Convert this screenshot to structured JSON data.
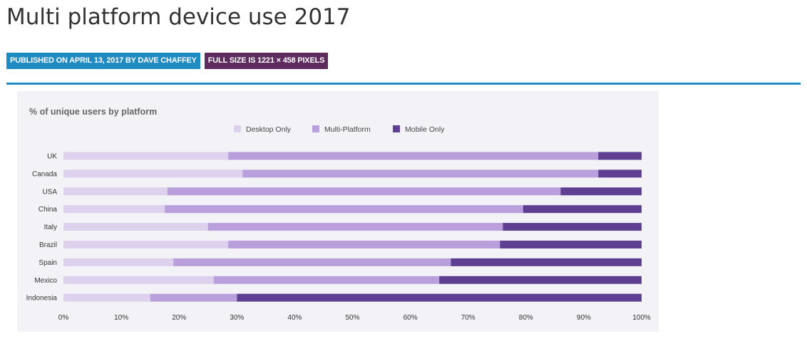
{
  "page": {
    "title": "Multi platform device use 2017",
    "published": "PUBLISHED ON APRIL 13, 2017 BY DAVE CHAFFEY",
    "fullsize": "FULL SIZE IS 1221 × 458 PIXELS"
  },
  "colors": {
    "accent_blue": "#1e8bc3",
    "badge_purple": "#5e2b5e",
    "desktop": "#ddd1ee",
    "multi": "#b9a0dd",
    "mobile": "#5e3f91"
  },
  "chart_data": {
    "type": "bar",
    "orientation": "horizontal",
    "stacked": true,
    "title": "% of unique users by platform",
    "xlabel": "",
    "ylabel": "",
    "xlim": [
      0,
      100
    ],
    "x_ticks": [
      "0%",
      "10%",
      "20%",
      "30%",
      "40%",
      "50%",
      "60%",
      "70%",
      "80%",
      "90%",
      "100%"
    ],
    "legend_position": "top",
    "categories": [
      "UK",
      "Canada",
      "USA",
      "China",
      "Italy",
      "Brazil",
      "Spain",
      "Mexico",
      "Indonesia"
    ],
    "series": [
      {
        "name": "Desktop Only",
        "values": [
          28.5,
          31,
          18,
          17.5,
          25,
          28.5,
          19,
          26,
          15
        ]
      },
      {
        "name": "Multi-Platform",
        "values": [
          64,
          61.5,
          68,
          62,
          51,
          47,
          48,
          39,
          15
        ]
      },
      {
        "name": "Mobile Only",
        "values": [
          7.5,
          7.5,
          14,
          20.5,
          24,
          24.5,
          33,
          35,
          70
        ]
      }
    ]
  }
}
